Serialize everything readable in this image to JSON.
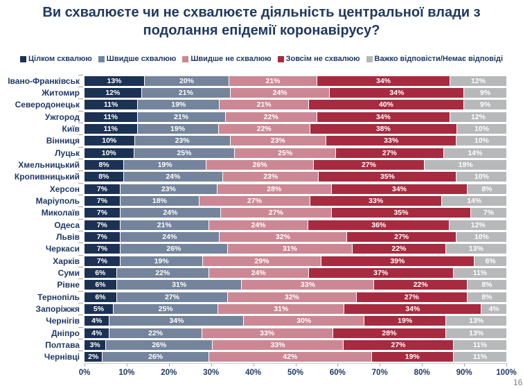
{
  "title": "Ви схвалюєте чи не схвалюєте діяльність центральної влади з подолання епідемії коронавірусу?",
  "page_number": "168",
  "colors": {
    "text_navy": "#1F3864",
    "axis_gray": "#A6A6A6"
  },
  "chart_data": {
    "type": "bar",
    "stacked": true,
    "orientation": "horizontal",
    "title": "Ви схвалюєте чи не схвалюєте діяльність центральної влади з подолання епідемії коронавірусу?",
    "xlabel": "",
    "ylabel": "",
    "xlim": [
      0,
      100
    ],
    "x_ticks": [
      "0%",
      "10%",
      "20%",
      "30%",
      "40%",
      "50%",
      "60%",
      "70%",
      "80%",
      "90%",
      "100%"
    ],
    "grid": false,
    "legend_position": "top",
    "value_suffix": "%",
    "categories": [
      "Івано-Франківськ",
      "Житомир",
      "Северодонецьк",
      "Ужгород",
      "Київ",
      "Вінниця",
      "Луцьк",
      "Хмельницький",
      "Кропивницький",
      "Херсон",
      "Маріуполь",
      "Миколаїв",
      "Одеса",
      "Львів",
      "Черкаси",
      "Харків",
      "Суми",
      "Рівне",
      "Тернопіль",
      "Запоріжжя",
      "Чернігів",
      "Дніпро",
      "Полтава",
      "Чернівці"
    ],
    "series": [
      {
        "name": "Цілком схвалюю",
        "color": "#1C3254",
        "values": [
          13,
          12,
          11,
          11,
          11,
          10,
          10,
          8,
          8,
          7,
          7,
          7,
          7,
          7,
          7,
          7,
          6,
          6,
          6,
          5,
          4,
          4,
          3,
          2
        ]
      },
      {
        "name": "Швидше схвалюю",
        "color": "#74849C",
        "values": [
          20,
          21,
          19,
          21,
          19,
          23,
          25,
          19,
          24,
          23,
          18,
          24,
          21,
          24,
          26,
          19,
          22,
          31,
          27,
          25,
          34,
          22,
          26,
          26
        ]
      },
      {
        "name": "Швидше не схвалюю",
        "color": "#CB8894",
        "values": [
          21,
          24,
          21,
          22,
          22,
          23,
          25,
          26,
          23,
          28,
          27,
          27,
          24,
          32,
          31,
          29,
          24,
          33,
          32,
          31,
          30,
          33,
          33,
          42
        ]
      },
      {
        "name": "Зовсім не схвалюю",
        "color": "#A62B40",
        "values": [
          34,
          34,
          40,
          34,
          38,
          33,
          27,
          27,
          35,
          34,
          33,
          35,
          36,
          27,
          22,
          39,
          37,
          22,
          27,
          34,
          19,
          28,
          27,
          19
        ]
      },
      {
        "name": "Важко відповісти/Немає відповіді",
        "color": "#B6B8BA",
        "values": [
          12,
          9,
          9,
          12,
          10,
          10,
          14,
          19,
          10,
          8,
          14,
          7,
          12,
          10,
          13,
          6,
          11,
          8,
          8,
          4,
          13,
          13,
          11,
          11
        ]
      }
    ]
  }
}
